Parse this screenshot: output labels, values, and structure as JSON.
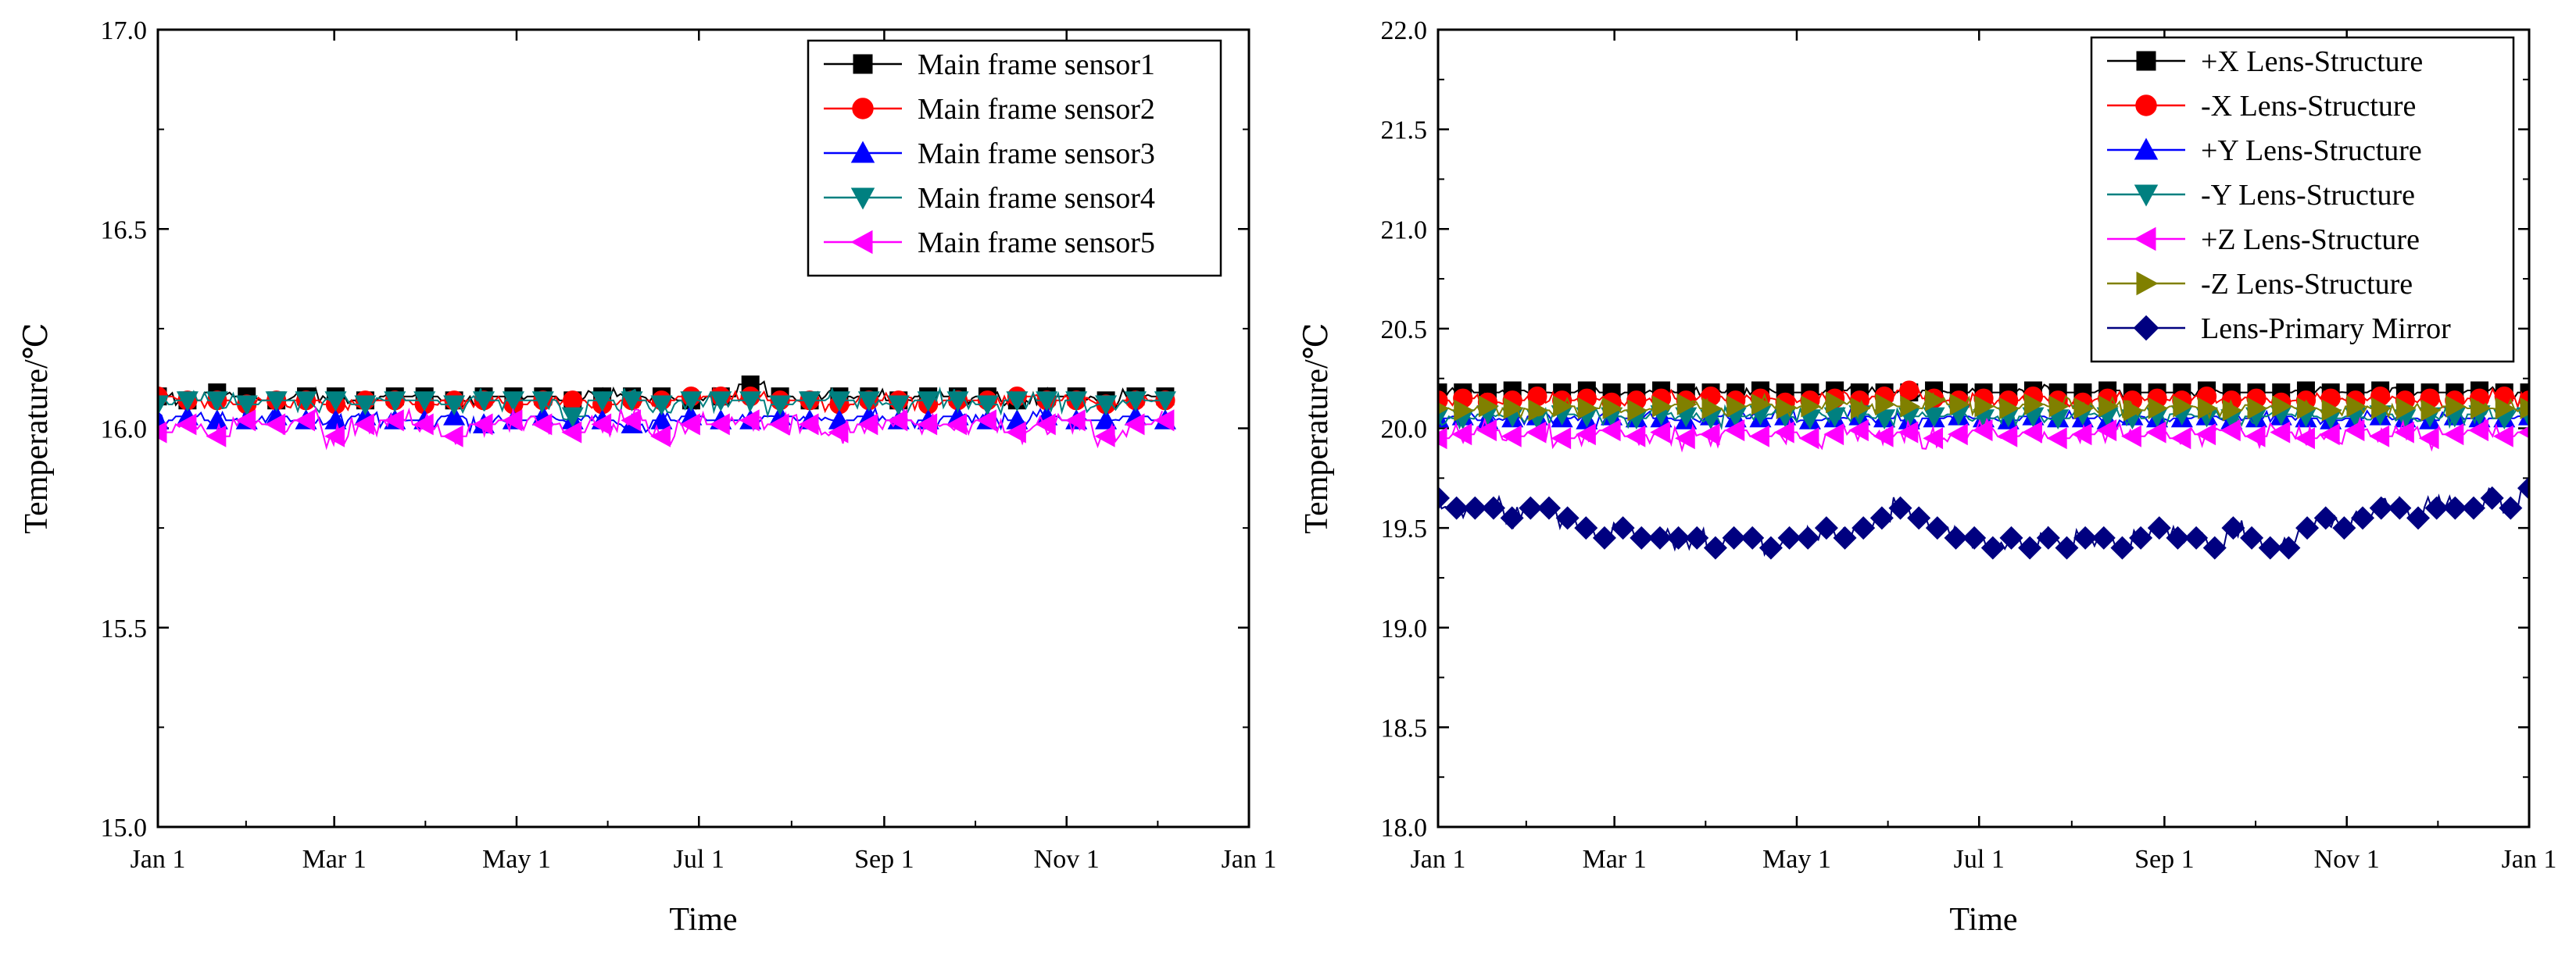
{
  "chart_data": [
    {
      "type": "line",
      "xlabel": "Time",
      "ylabel": "Temperature/℃",
      "ylim": [
        15.0,
        17.0
      ],
      "yticks": [
        "15.0",
        "15.5",
        "16.0",
        "16.5",
        "17.0"
      ],
      "xlim": [
        0,
        365
      ],
      "xticks": [
        {
          "label": "Jan 1",
          "day": 0
        },
        {
          "label": "Mar 1",
          "day": 59
        },
        {
          "label": "May 1",
          "day": 120
        },
        {
          "label": "Jul 1",
          "day": 181
        },
        {
          "label": "Sep 1",
          "day": 243
        },
        {
          "label": "Nov 1",
          "day": 304
        },
        {
          "label": "Jan 1",
          "day": 365
        }
      ],
      "x_end_day": 337,
      "legend_position": "top-right",
      "series": [
        {
          "name": "Main frame sensor1",
          "color": "#000000",
          "marker": "square",
          "base": 16.08,
          "amp": 0.02,
          "mark_values": [
            16.08,
            16.07,
            16.09,
            16.08,
            16.07,
            16.08,
            16.08,
            16.07,
            16.08,
            16.08,
            16.07,
            16.08,
            16.08,
            16.08,
            16.07,
            16.08,
            16.08,
            16.08,
            16.07,
            16.08,
            16.11,
            16.08,
            16.07,
            16.08,
            16.08,
            16.07,
            16.08,
            16.08,
            16.08,
            16.07,
            16.08,
            16.08,
            16.07,
            16.08,
            16.08
          ]
        },
        {
          "name": "Main frame sensor2",
          "color": "#ff0000",
          "marker": "circle",
          "base": 16.07,
          "amp": 0.02,
          "mark_values": [
            16.08,
            16.07,
            16.07,
            16.06,
            16.07,
            16.07,
            16.06,
            16.07,
            16.07,
            16.06,
            16.07,
            16.07,
            16.06,
            16.07,
            16.07,
            16.06,
            16.07,
            16.07,
            16.08,
            16.08,
            16.08,
            16.07,
            16.07,
            16.06,
            16.07,
            16.07,
            16.06,
            16.07,
            16.07,
            16.08,
            16.07,
            16.07,
            16.06,
            16.07,
            16.07
          ]
        },
        {
          "name": "Main frame sensor3",
          "color": "#0000ff",
          "marker": "triangle-up",
          "base": 16.02,
          "amp": 0.02,
          "mark_values": [
            16.02,
            16.03,
            16.02,
            16.02,
            16.03,
            16.02,
            16.02,
            16.03,
            16.02,
            16.02,
            16.03,
            16.01,
            16.02,
            16.03,
            16.02,
            16.02,
            16.01,
            16.02,
            16.03,
            16.02,
            16.02,
            16.03,
            16.02,
            16.02,
            16.03,
            16.02,
            16.02,
            16.03,
            16.02,
            16.02,
            16.03,
            16.02,
            16.02,
            16.03,
            16.02
          ]
        },
        {
          "name": "Main frame sensor4",
          "color": "#008080",
          "marker": "triangle-down",
          "base": 16.07,
          "amp": 0.03,
          "mark_values": [
            16.06,
            16.07,
            16.07,
            16.06,
            16.07,
            16.07,
            16.07,
            16.06,
            16.07,
            16.07,
            16.06,
            16.07,
            16.07,
            16.07,
            16.03,
            16.07,
            16.07,
            16.06,
            16.07,
            16.07,
            16.07,
            16.06,
            16.07,
            16.07,
            16.07,
            16.06,
            16.07,
            16.07,
            16.06,
            16.07,
            16.07,
            16.07,
            16.06,
            16.07,
            16.07
          ]
        },
        {
          "name": "Main frame sensor5",
          "color": "#ff00ff",
          "marker": "triangle-left",
          "base": 16.01,
          "amp": 0.03,
          "mark_values": [
            15.99,
            16.01,
            15.98,
            16.02,
            16.01,
            16.02,
            15.98,
            16.01,
            16.02,
            16.01,
            15.98,
            16.01,
            16.02,
            16.01,
            15.99,
            16.01,
            16.02,
            15.98,
            16.01,
            16.01,
            16.02,
            16.01,
            16.01,
            15.99,
            16.01,
            16.02,
            16.01,
            16.01,
            16.02,
            15.99,
            16.01,
            16.02,
            15.98,
            16.01,
            16.02
          ]
        }
      ]
    },
    {
      "type": "line",
      "xlabel": "Time",
      "ylabel": "Temperature/℃",
      "ylim": [
        18.0,
        22.0
      ],
      "yticks": [
        "18.0",
        "18.5",
        "19.0",
        "19.5",
        "20.0",
        "20.5",
        "21.0",
        "21.5",
        "22.0"
      ],
      "xlim": [
        0,
        365
      ],
      "xticks": [
        {
          "label": "Jan 1",
          "day": 0
        },
        {
          "label": "Mar 1",
          "day": 59
        },
        {
          "label": "May 1",
          "day": 120
        },
        {
          "label": "Jul 1",
          "day": 181
        },
        {
          "label": "Sep 1",
          "day": 243
        },
        {
          "label": "Nov 1",
          "day": 304
        },
        {
          "label": "Jan 1",
          "day": 365
        }
      ],
      "x_end_day": 365,
      "legend_position": "top-right",
      "series": [
        {
          "name": "+X Lens-Structure",
          "color": "#000000",
          "marker": "square",
          "base": 20.17,
          "amp": 0.03,
          "mark_values": [
            20.18,
            20.18,
            20.18,
            20.19,
            20.18,
            20.18,
            20.19,
            20.18,
            20.18,
            20.19,
            20.18,
            20.18,
            20.18,
            20.19,
            20.18,
            20.18,
            20.19,
            20.18,
            20.18,
            20.18,
            20.19,
            20.18,
            20.18,
            20.18,
            20.19,
            20.18,
            20.18,
            20.19,
            20.18,
            20.18,
            20.18,
            20.19,
            20.18,
            20.18,
            20.18,
            20.19,
            20.18,
            20.18,
            20.19,
            20.18,
            20.18,
            20.18,
            20.19,
            20.18,
            20.18
          ]
        },
        {
          "name": "-X Lens-Structure",
          "color": "#ff0000",
          "marker": "circle",
          "base": 20.14,
          "amp": 0.04,
          "mark_values": [
            20.14,
            20.15,
            20.13,
            20.14,
            20.16,
            20.14,
            20.15,
            20.13,
            20.14,
            20.15,
            20.14,
            20.16,
            20.14,
            20.15,
            20.13,
            20.14,
            20.15,
            20.14,
            20.16,
            20.19,
            20.15,
            20.14,
            20.15,
            20.14,
            20.16,
            20.14,
            20.13,
            20.15,
            20.14,
            20.15,
            20.14,
            20.16,
            20.14,
            20.15,
            20.13,
            20.14,
            20.15,
            20.14,
            20.16,
            20.14,
            20.15,
            20.14,
            20.15,
            20.16,
            20.14
          ]
        },
        {
          "name": "+Y Lens-Structure",
          "color": "#0000ff",
          "marker": "triangle-up",
          "base": 20.05,
          "amp": 0.04,
          "mark_values": [
            20.05,
            20.06,
            20.04,
            20.05,
            20.06,
            20.05,
            20.04,
            20.06,
            20.05,
            20.05,
            20.04,
            20.06,
            20.05,
            20.05,
            20.06,
            20.04,
            20.05,
            20.06,
            20.05,
            20.04,
            20.05,
            20.06,
            20.05,
            20.04,
            20.06,
            20.05,
            20.05,
            20.04,
            20.06,
            20.05,
            20.05,
            20.06,
            20.04,
            20.05,
            20.06,
            20.05,
            20.04,
            20.05,
            20.06,
            20.05,
            20.04,
            20.06,
            20.05,
            20.05,
            20.06
          ]
        },
        {
          "name": "-Y Lens-Structure",
          "color": "#008080",
          "marker": "triangle-down",
          "base": 20.06,
          "amp": 0.05,
          "mark_values": [
            20.06,
            20.05,
            20.07,
            20.06,
            20.05,
            20.07,
            20.06,
            20.06,
            20.05,
            20.07,
            20.06,
            20.05,
            20.06,
            20.07,
            20.06,
            20.05,
            20.06,
            20.07,
            20.05,
            20.06,
            20.06,
            20.07,
            20.05,
            20.06,
            20.06,
            20.05,
            20.07,
            20.06,
            20.05,
            20.06,
            20.07,
            20.06,
            20.05,
            20.06,
            20.07,
            20.06,
            20.05,
            20.06,
            20.07,
            20.05,
            20.06,
            20.06,
            20.07,
            20.05,
            20.06
          ]
        },
        {
          "name": "+Z Lens-Structure",
          "color": "#ff00ff",
          "marker": "triangle-left",
          "base": 19.97,
          "amp": 0.06,
          "mark_values": [
            19.95,
            19.97,
            19.99,
            19.96,
            19.98,
            19.95,
            19.97,
            19.99,
            19.96,
            19.98,
            19.95,
            19.97,
            19.99,
            19.96,
            19.98,
            19.95,
            19.97,
            19.99,
            19.96,
            19.98,
            19.95,
            19.97,
            19.99,
            19.96,
            19.98,
            19.95,
            19.97,
            19.99,
            19.96,
            19.98,
            19.95,
            19.97,
            19.99,
            19.96,
            19.98,
            19.95,
            19.97,
            19.99,
            19.96,
            19.98,
            19.95,
            19.97,
            19.99,
            19.96,
            19.98
          ]
        },
        {
          "name": "-Z Lens-Structure",
          "color": "#808000",
          "marker": "triangle-right",
          "base": 20.1,
          "amp": 0.05,
          "mark_values": [
            20.1,
            20.09,
            20.11,
            20.1,
            20.09,
            20.11,
            20.1,
            20.1,
            20.09,
            20.11,
            20.12,
            20.1,
            20.11,
            20.12,
            20.1,
            20.11,
            20.13,
            20.1,
            20.12,
            20.11,
            20.14,
            20.12,
            20.11,
            20.1,
            20.12,
            20.11,
            20.1,
            20.11,
            20.09,
            20.1,
            20.11,
            20.1,
            20.09,
            20.1,
            20.11,
            20.1,
            20.09,
            20.11,
            20.1,
            20.1,
            20.09,
            20.11,
            20.1,
            20.1,
            20.1
          ]
        },
        {
          "name": "Lens-Primary Mirror",
          "color": "#000080",
          "marker": "diamond",
          "base": 19.5,
          "amp": 0.06,
          "mark_values": [
            19.65,
            19.6,
            19.6,
            19.6,
            19.55,
            19.6,
            19.6,
            19.55,
            19.5,
            19.45,
            19.5,
            19.45,
            19.45,
            19.45,
            19.45,
            19.4,
            19.45,
            19.45,
            19.4,
            19.45,
            19.45,
            19.5,
            19.45,
            19.5,
            19.55,
            19.6,
            19.55,
            19.5,
            19.45,
            19.45,
            19.4,
            19.45,
            19.4,
            19.45,
            19.4,
            19.45,
            19.45,
            19.4,
            19.45,
            19.5,
            19.45,
            19.45,
            19.4,
            19.5,
            19.45,
            19.4,
            19.4,
            19.5,
            19.55,
            19.5,
            19.55,
            19.6,
            19.6,
            19.55,
            19.6,
            19.6,
            19.6,
            19.65,
            19.6,
            19.7
          ]
        }
      ]
    }
  ]
}
